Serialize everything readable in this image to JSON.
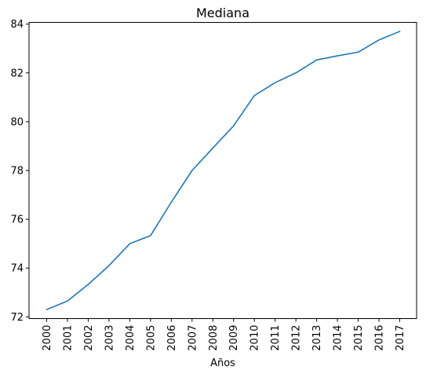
{
  "chart_data": {
    "type": "line",
    "title": "Mediana",
    "xlabel": "Años",
    "ylabel": "",
    "categories": [
      "2000",
      "2001",
      "2002",
      "2003",
      "2004",
      "2005",
      "2006",
      "2007",
      "2008",
      "2009",
      "2010",
      "2011",
      "2012",
      "2013",
      "2014",
      "2015",
      "2016",
      "2017"
    ],
    "series": [
      {
        "values": [
          72.3,
          72.65,
          73.33,
          74.1,
          75.0,
          75.33,
          76.7,
          78.0,
          78.92,
          79.83,
          81.07,
          81.6,
          82.0,
          82.53,
          82.7,
          82.85,
          83.35,
          83.7
        ],
        "color": "#1f77b4"
      }
    ],
    "yticks": [
      72,
      74,
      76,
      78,
      80,
      82,
      84
    ],
    "ylim": [
      71.93,
      84.07
    ],
    "grid": false,
    "legend": "none"
  }
}
